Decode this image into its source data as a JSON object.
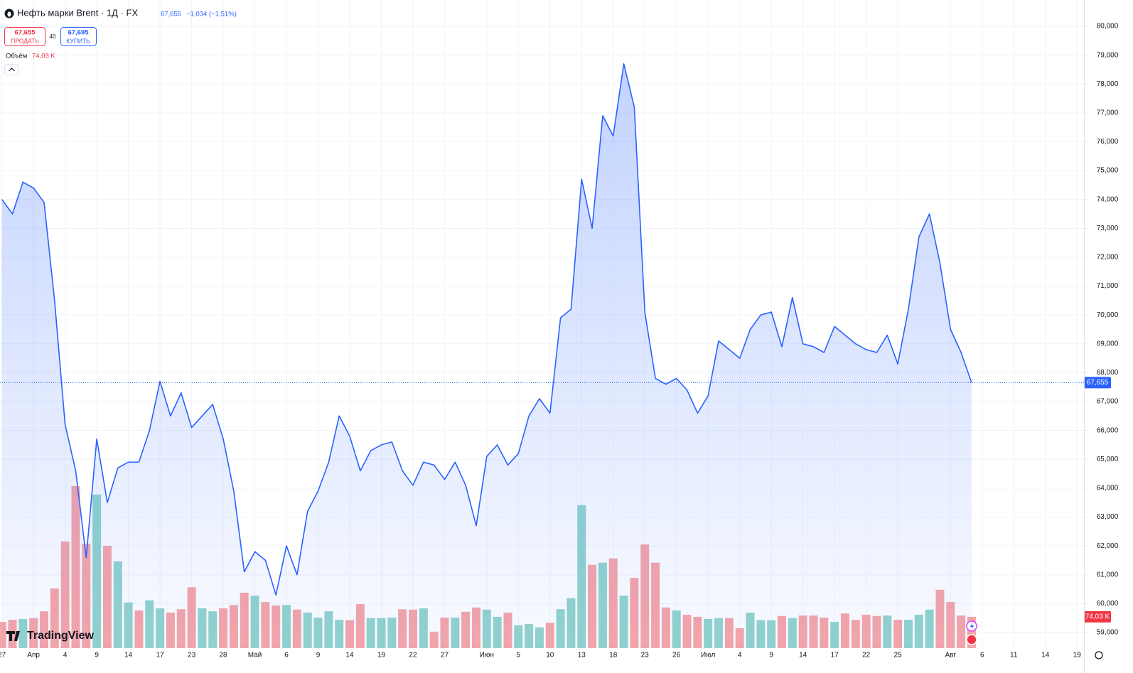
{
  "header": {
    "symbol": "Нефть марки Brent · 1Д · FX",
    "last": "67,655",
    "change": "−1,034",
    "change_percent": "(−1,51%)"
  },
  "quote": {
    "sell_price": "67,655",
    "sell_label": "ПРОДАТЬ",
    "spread": "40",
    "buy_price": "67,695",
    "buy_label": "КУПИТЬ"
  },
  "logo": "TradingView",
  "chart_data": {
    "type": "area",
    "x": [
      0,
      1,
      2,
      3,
      4,
      5,
      6,
      7,
      8,
      9,
      10,
      11,
      12,
      13,
      14,
      15,
      16,
      17,
      18,
      19,
      20,
      21,
      22,
      23,
      24,
      25,
      26,
      27,
      28,
      29,
      30,
      31,
      32,
      33,
      34,
      35,
      36,
      37,
      38,
      39,
      40,
      41,
      42,
      43,
      44,
      45,
      46,
      47,
      48,
      49,
      50,
      51,
      52,
      53,
      54,
      55,
      56,
      57,
      58,
      59,
      60,
      61,
      62,
      63,
      64,
      65,
      66,
      67,
      68,
      69,
      70,
      71,
      72,
      73,
      74,
      75,
      76,
      77,
      78,
      79,
      80,
      81,
      82,
      83,
      84,
      85,
      86,
      87,
      88,
      89,
      90,
      91,
      92
    ],
    "series": [
      {
        "name": "Нефть марки Brent",
        "color": "#2962ff",
        "values": [
          74.0,
          73.5,
          74.6,
          74.4,
          73.9,
          70.5,
          66.2,
          64.6,
          61.6,
          65.7,
          63.5,
          64.7,
          64.9,
          64.9,
          66.0,
          67.7,
          66.5,
          67.3,
          66.1,
          66.5,
          66.9,
          65.7,
          63.9,
          61.1,
          61.8,
          61.5,
          60.3,
          62.0,
          61.0,
          63.2,
          63.9,
          64.9,
          66.5,
          65.8,
          64.6,
          65.3,
          65.5,
          65.6,
          64.6,
          64.1,
          64.9,
          64.8,
          64.3,
          64.9,
          64.1,
          62.7,
          65.1,
          65.5,
          64.8,
          65.2,
          66.5,
          67.1,
          66.6,
          69.9,
          70.2,
          74.7,
          73.0,
          76.9,
          76.2,
          78.7,
          77.2,
          70.1,
          67.8,
          67.6,
          67.8,
          67.4,
          66.6,
          67.2,
          69.1,
          68.8,
          68.5,
          69.5,
          70.0,
          70.1,
          68.9,
          70.6,
          69.0,
          68.9,
          68.7,
          69.6,
          69.3,
          69.0,
          68.8,
          68.7,
          69.3,
          68.3,
          70.2,
          72.7,
          73.5,
          71.8,
          69.5,
          68.7,
          67.655
        ],
        "last_value_label": "67,655"
      }
    ],
    "volume": {
      "name": "Объём",
      "last_value_label": "74,03 K",
      "values": [
        62,
        67,
        69,
        71,
        87,
        141,
        252,
        383,
        247,
        363,
        242,
        205,
        108,
        89,
        113,
        94,
        84,
        92,
        144,
        94,
        87,
        94,
        102,
        131,
        124,
        109,
        101,
        102,
        91,
        84,
        72,
        87,
        67,
        66,
        104,
        71,
        71,
        72,
        92,
        91,
        94,
        39,
        72,
        72,
        86,
        96,
        91,
        74,
        84,
        54,
        57,
        49,
        60,
        92,
        118,
        338,
        197,
        202,
        212,
        124,
        166,
        245,
        202,
        96,
        89,
        79,
        74,
        69,
        71,
        71,
        47,
        84,
        66,
        66,
        76,
        71,
        77,
        77,
        72,
        62,
        82,
        67,
        79,
        76,
        77,
        67,
        67,
        79,
        91,
        138,
        109,
        77,
        74.03
      ],
      "colors": [
        "#f7a6a8",
        "#f7a6a8",
        "#93d4cd",
        "#f7a6a8",
        "#f7a6a8",
        "#f7a6a8",
        "#f7a6a8",
        "#f7a6a8",
        "#f7a6a8",
        "#93d4cd",
        "#f7a6a8",
        "#93d4cd",
        "#93d4cd",
        "#f7a6a8",
        "#93d4cd",
        "#93d4cd",
        "#f7a6a8",
        "#f7a6a8",
        "#f7a6a8",
        "#93d4cd",
        "#93d4cd",
        "#f7a6a8",
        "#f7a6a8",
        "#f7a6a8",
        "#93d4cd",
        "#f7a6a8",
        "#f7a6a8",
        "#93d4cd",
        "#f7a6a8",
        "#93d4cd",
        "#93d4cd",
        "#93d4cd",
        "#93d4cd",
        "#f7a6a8",
        "#f7a6a8",
        "#93d4cd",
        "#93d4cd",
        "#93d4cd",
        "#f7a6a8",
        "#f7a6a8",
        "#93d4cd",
        "#f7a6a8",
        "#f7a6a8",
        "#93d4cd",
        "#f7a6a8",
        "#f7a6a8",
        "#93d4cd",
        "#93d4cd",
        "#f7a6a8",
        "#93d4cd",
        "#93d4cd",
        "#93d4cd",
        "#f7a6a8",
        "#93d4cd",
        "#93d4cd",
        "#93d4cd",
        "#f7a6a8",
        "#93d4cd",
        "#f7a6a8",
        "#93d4cd",
        "#f7a6a8",
        "#f7a6a8",
        "#f7a6a8",
        "#f7a6a8",
        "#93d4cd",
        "#f7a6a8",
        "#f7a6a8",
        "#93d4cd",
        "#93d4cd",
        "#f7a6a8",
        "#f7a6a8",
        "#93d4cd",
        "#93d4cd",
        "#93d4cd",
        "#f7a6a8",
        "#93d4cd",
        "#f7a6a8",
        "#f7a6a8",
        "#f7a6a8",
        "#93d4cd",
        "#f7a6a8",
        "#f7a6a8",
        "#f7a6a8",
        "#f7a6a8",
        "#93d4cd",
        "#f7a6a8",
        "#93d4cd",
        "#93d4cd",
        "#93d4cd",
        "#f7a6a8",
        "#f7a6a8",
        "#f7a6a8",
        "#f7a6a8"
      ]
    },
    "xlim": [
      -0.18,
      102.66
    ],
    "xticks": [
      {
        "value": 0,
        "label": "27"
      },
      {
        "value": 3,
        "label": "Апр"
      },
      {
        "value": 6,
        "label": "4"
      },
      {
        "value": 9,
        "label": "9"
      },
      {
        "value": 12,
        "label": "14"
      },
      {
        "value": 15,
        "label": "17"
      },
      {
        "value": 18,
        "label": "23"
      },
      {
        "value": 21,
        "label": "28"
      },
      {
        "value": 24,
        "label": "Май"
      },
      {
        "value": 27,
        "label": "6"
      },
      {
        "value": 30,
        "label": "9"
      },
      {
        "value": 33,
        "label": "14"
      },
      {
        "value": 36,
        "label": "19"
      },
      {
        "value": 39,
        "label": "22"
      },
      {
        "value": 42,
        "label": "27"
      },
      {
        "value": 46,
        "label": "Июн"
      },
      {
        "value": 49,
        "label": "5"
      },
      {
        "value": 52,
        "label": "10"
      },
      {
        "value": 55,
        "label": "13"
      },
      {
        "value": 58,
        "label": "18"
      },
      {
        "value": 61,
        "label": "23"
      },
      {
        "value": 64,
        "label": "26"
      },
      {
        "value": 67,
        "label": "Июл"
      },
      {
        "value": 70,
        "label": "4"
      },
      {
        "value": 73,
        "label": "9"
      },
      {
        "value": 76,
        "label": "14"
      },
      {
        "value": 79,
        "label": "17"
      },
      {
        "value": 82,
        "label": "22"
      },
      {
        "value": 85,
        "label": "25"
      },
      {
        "value": 90,
        "label": "Авг"
      },
      {
        "value": 93,
        "label": "6"
      },
      {
        "value": 96,
        "label": "11"
      },
      {
        "value": 99,
        "label": "14"
      },
      {
        "value": 102,
        "label": "19"
      }
    ],
    "ylim": [
      58.458,
      80.911
    ],
    "yticks": [
      {
        "value": 59,
        "label": "59,000"
      },
      {
        "value": 60,
        "label": "60,000"
      },
      {
        "value": 61,
        "label": "61,000"
      },
      {
        "value": 62,
        "label": "62,000"
      },
      {
        "value": 63,
        "label": "63,000"
      },
      {
        "value": 64,
        "label": "64,000"
      },
      {
        "value": 65,
        "label": "65,000"
      },
      {
        "value": 66,
        "label": "66,000"
      },
      {
        "value": 67,
        "label": "67,000"
      },
      {
        "value": 68,
        "label": "68,000"
      },
      {
        "value": 69,
        "label": "69,000"
      },
      {
        "value": 70,
        "label": "70,000"
      },
      {
        "value": 71,
        "label": "71,000"
      },
      {
        "value": 72,
        "label": "72,000"
      },
      {
        "value": 73,
        "label": "73,000"
      },
      {
        "value": 74,
        "label": "74,000"
      },
      {
        "value": 75,
        "label": "75,000"
      },
      {
        "value": 76,
        "label": "76,000"
      },
      {
        "value": 77,
        "label": "77,000"
      },
      {
        "value": 78,
        "label": "78,000"
      },
      {
        "value": 79,
        "label": "79,000"
      },
      {
        "value": 80,
        "label": "80,000"
      }
    ],
    "grid": true
  }
}
